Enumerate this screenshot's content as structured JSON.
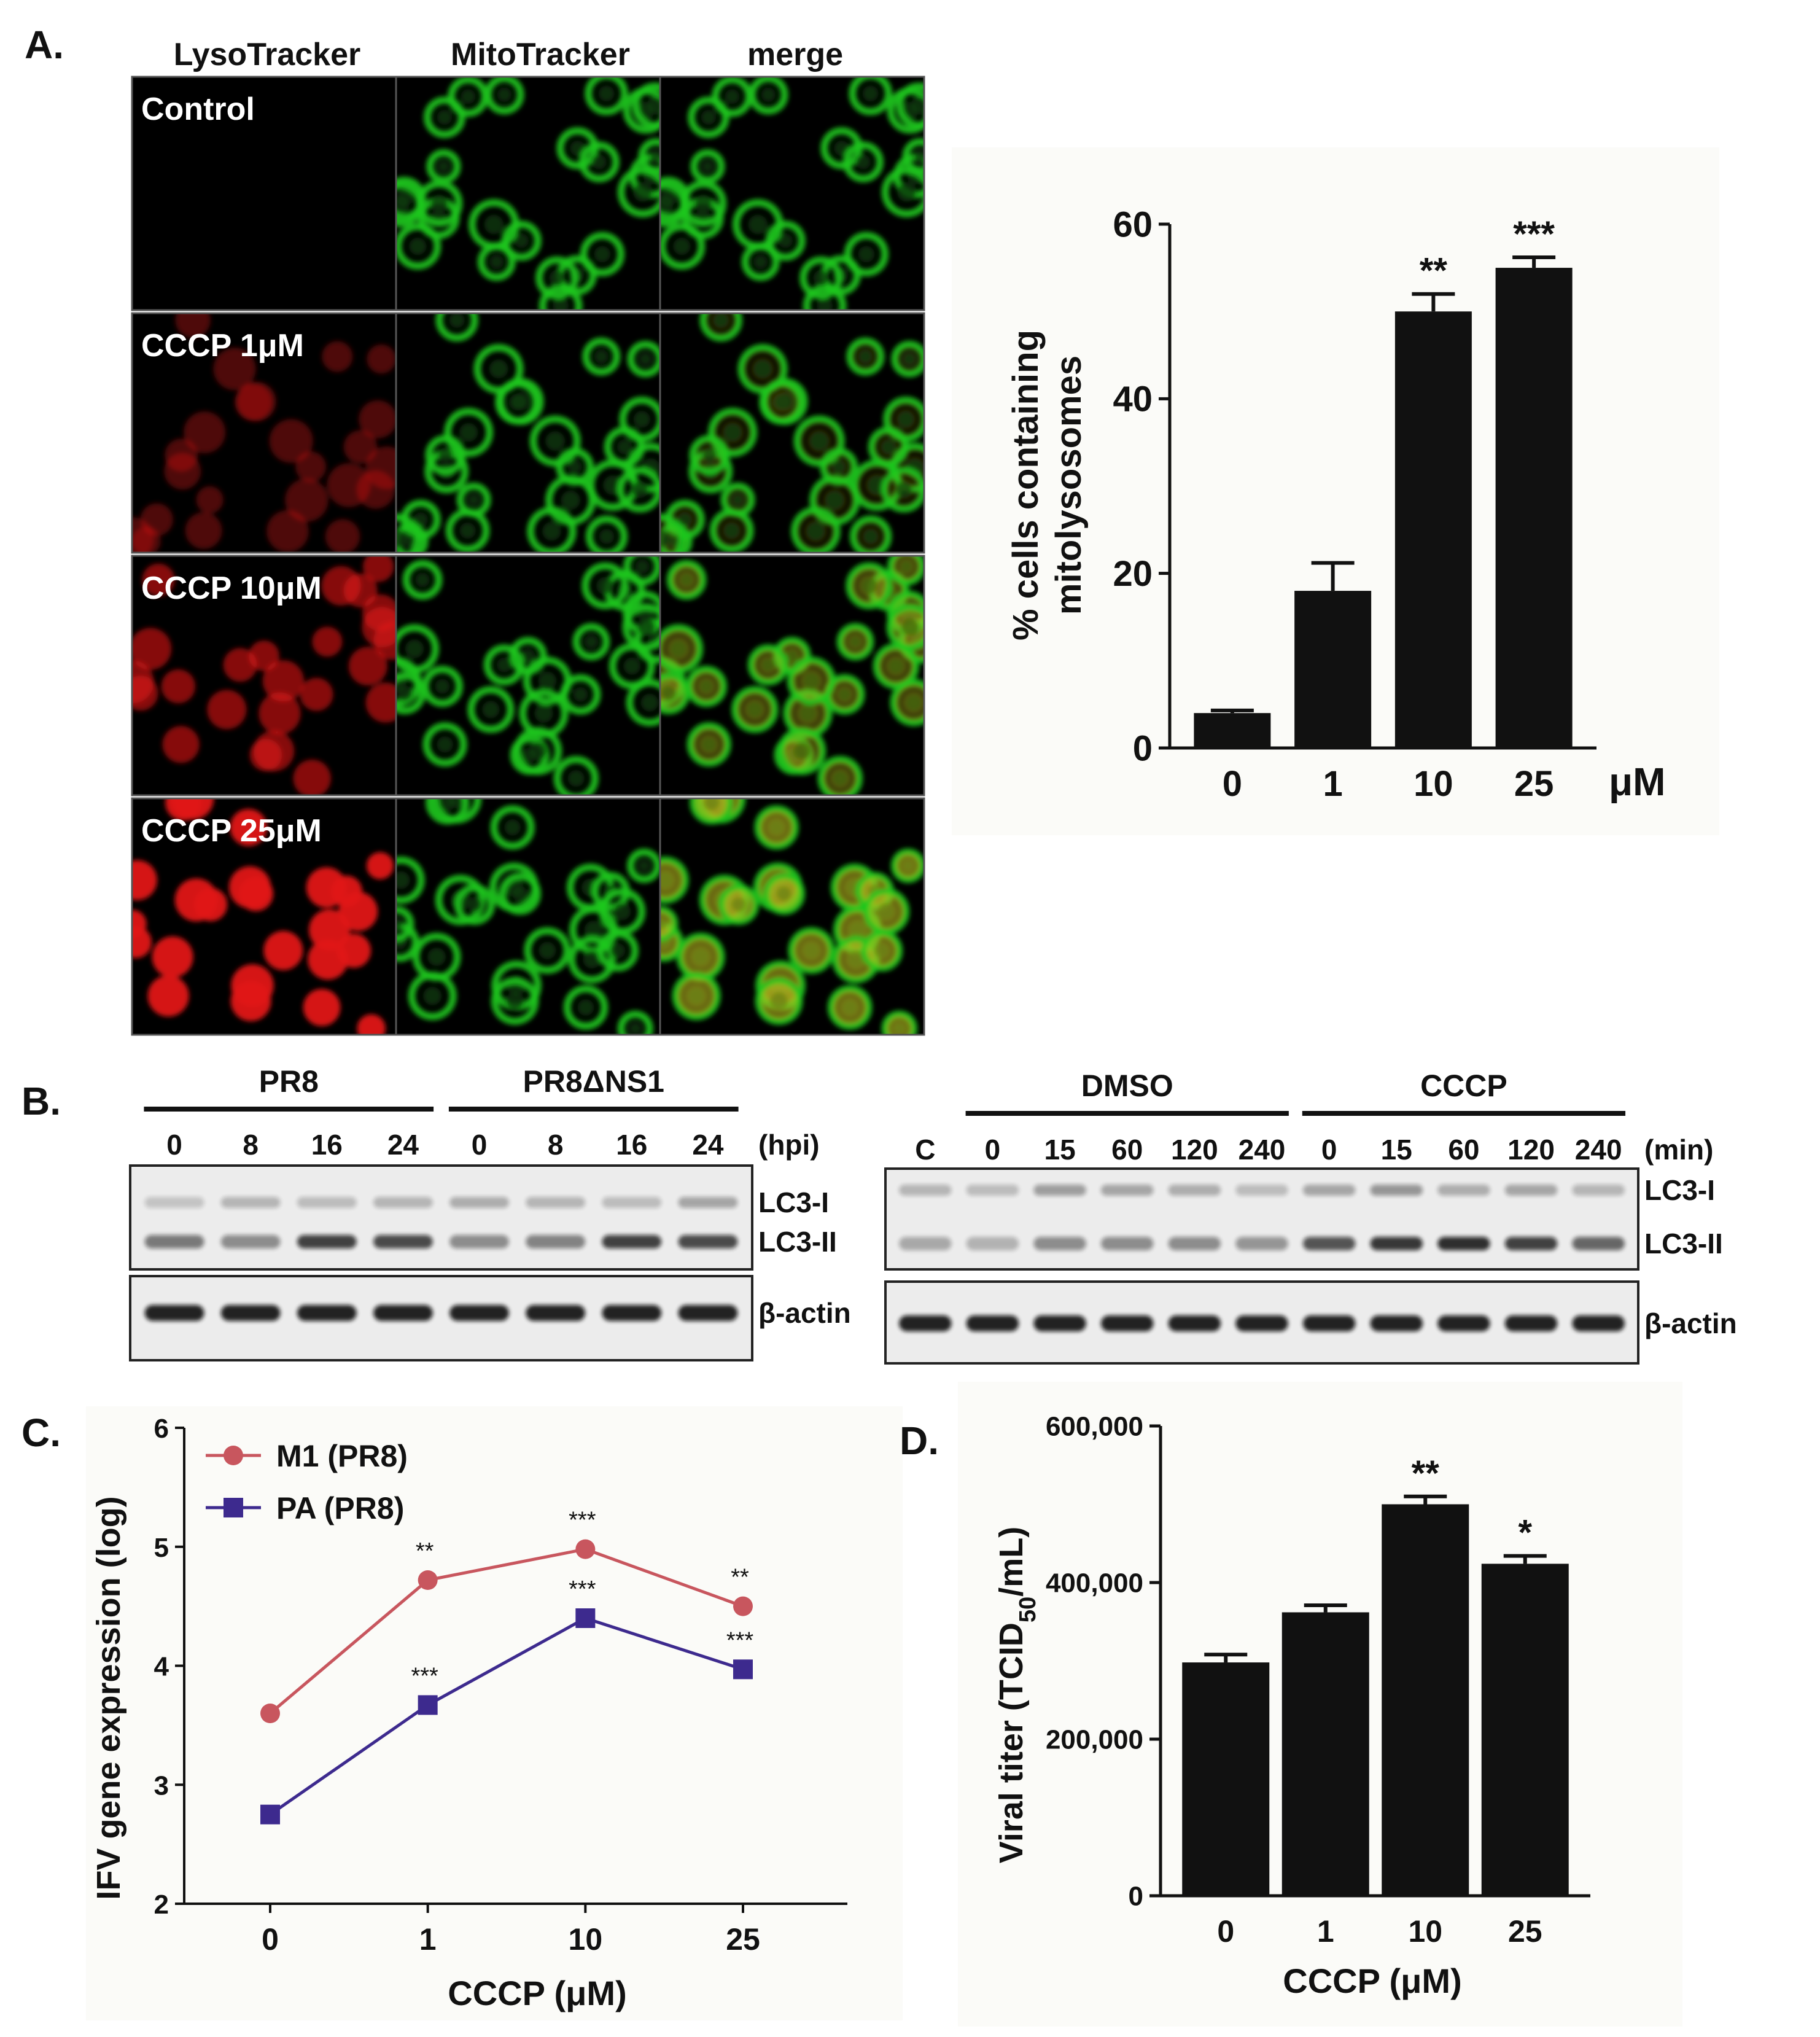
{
  "panel_a": {
    "label": "A.",
    "column_headers": [
      "LysoTracker",
      "MitoTracker",
      "merge"
    ],
    "row_labels": [
      "Control",
      "CCCP 1μM",
      "CCCP 10μM",
      "CCCP 25μM"
    ],
    "red_intensity": [
      0,
      0.35,
      0.6,
      0.95
    ],
    "yellow_overlap": [
      0,
      0.1,
      0.45,
      0.75
    ],
    "colors": {
      "lyso": "#e01818",
      "mito": "#1ec81e",
      "background": "#000000"
    }
  },
  "panel_b": {
    "label": "B.",
    "left": {
      "groups": [
        "PR8",
        "PR8ΔNS1"
      ],
      "lanes": [
        "0",
        "8",
        "16",
        "24",
        "0",
        "8",
        "16",
        "24"
      ],
      "unit": "(hpi)",
      "blot_labels": [
        "LC3-I",
        "LC3-II",
        "β-actin"
      ],
      "lc3i_intensity": [
        0.25,
        0.35,
        0.3,
        0.35,
        0.4,
        0.35,
        0.3,
        0.45
      ],
      "lc3ii_intensity": [
        0.6,
        0.5,
        0.9,
        0.85,
        0.5,
        0.55,
        0.9,
        0.85
      ],
      "actin_intensity": [
        0.9,
        0.9,
        0.9,
        0.9,
        0.9,
        0.9,
        0.9,
        0.9
      ]
    },
    "right": {
      "groups": [
        "DMSO",
        "CCCP"
      ],
      "lanes": [
        "C",
        "0",
        "15",
        "60",
        "120",
        "240",
        "0",
        "15",
        "60",
        "120",
        "240"
      ],
      "unit": "(min)",
      "blot_labels": [
        "LC3-I",
        "LC3-II",
        "β-actin"
      ],
      "lc3i_intensity": [
        0.35,
        0.3,
        0.5,
        0.45,
        0.4,
        0.3,
        0.45,
        0.55,
        0.4,
        0.45,
        0.35
      ],
      "lc3ii_intensity": [
        0.35,
        0.3,
        0.5,
        0.5,
        0.5,
        0.45,
        0.8,
        0.95,
        1.0,
        0.9,
        0.7
      ],
      "actin_intensity": [
        0.9,
        0.9,
        0.9,
        0.9,
        0.9,
        0.9,
        0.9,
        0.9,
        0.9,
        0.9,
        0.9
      ]
    }
  },
  "panel_c_label": "C.",
  "panel_d_label": "D.",
  "chart_data": [
    {
      "id": "A-bar",
      "type": "bar",
      "categories": [
        "0",
        "1",
        "10",
        "25"
      ],
      "values": [
        4,
        18,
        50,
        55
      ],
      "errors": [
        0.3,
        3.2,
        2.0,
        1.2
      ],
      "significance": [
        "",
        "",
        "**",
        "***"
      ],
      "unit_label": "μM",
      "ylabel": "% cells containing mitolysosomes",
      "ylim": [
        0,
        60
      ],
      "yticks": [
        "0",
        "20",
        "40",
        "60"
      ],
      "bar_color": "#111111"
    },
    {
      "id": "C-line",
      "type": "line",
      "categories": [
        "0",
        "1",
        "10",
        "25"
      ],
      "series": [
        {
          "name": "M1 (PR8)",
          "values": [
            3.6,
            4.72,
            4.98,
            4.5
          ],
          "significance": [
            "",
            "**",
            "***",
            "**"
          ],
          "color": "#c8565e",
          "marker": "circle"
        },
        {
          "name": "PA (PR8)",
          "values": [
            2.75,
            3.67,
            4.4,
            3.97
          ],
          "significance": [
            "",
            "***",
            "***",
            "***"
          ],
          "color": "#3d2a8e",
          "marker": "square"
        }
      ],
      "xlabel": "CCCP (μM)",
      "ylabel": "IFV gene expression (log)",
      "ylim": [
        2,
        6
      ],
      "yticks": [
        "2",
        "3",
        "4",
        "5",
        "6"
      ],
      "legend": "top-left"
    },
    {
      "id": "D-bar",
      "type": "bar",
      "categories": [
        "0",
        "1",
        "10",
        "25"
      ],
      "values": [
        298000,
        362000,
        500000,
        424000
      ],
      "errors": [
        10000,
        9000,
        10000,
        10000
      ],
      "significance": [
        "",
        "",
        "**",
        "*"
      ],
      "xlabel": "CCCP (μM)",
      "ylabel": "Viral titer (TCID50/mL)",
      "ylabel_main": "Viral titer (TCID",
      "ylabel_sub": "50",
      "ylabel_end": "/mL)",
      "ylim": [
        0,
        600000
      ],
      "yticks": [
        "0",
        "200,000",
        "400,000",
        "600,000"
      ],
      "bar_color": "#111111"
    }
  ]
}
